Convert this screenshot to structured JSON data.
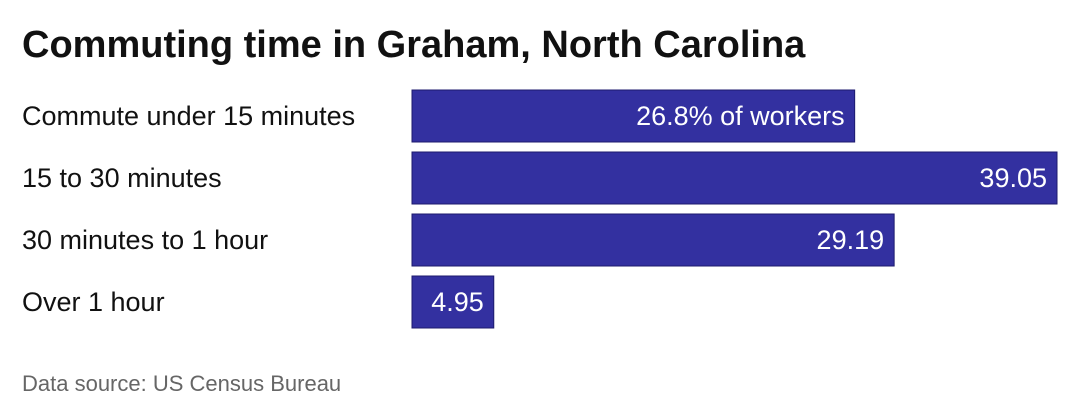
{
  "chart_data": {
    "type": "bar",
    "orientation": "horizontal",
    "title": "Commuting time in Graham, North Carolina",
    "categories": [
      "Commute under 15 minutes",
      "15 to 30 minutes",
      "30 minutes to 1 hour",
      "Over 1 hour"
    ],
    "values": [
      26.8,
      39.05,
      29.19,
      4.95
    ],
    "value_labels": [
      "26.8% of workers",
      "39.05",
      "29.19",
      "4.95"
    ],
    "color": "#3330a0",
    "source": "Data source: US Census Bureau"
  }
}
